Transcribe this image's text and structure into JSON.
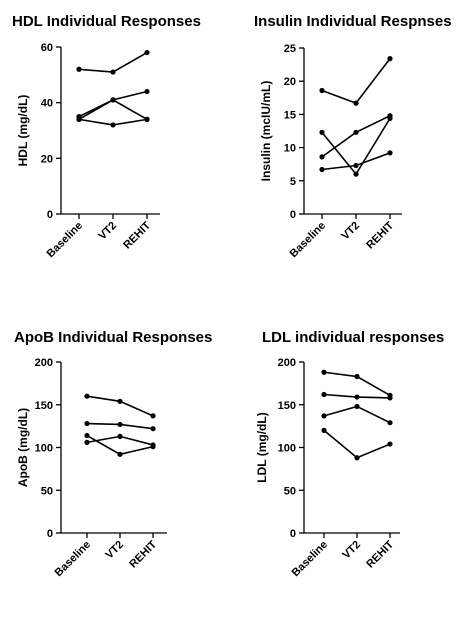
{
  "chart_data": [
    {
      "type": "line",
      "title": "HDL Individual Responses",
      "ylabel": "HDL (mg/dL)",
      "xlabel": "",
      "categories": [
        "Baseline",
        "VT2",
        "REHIT"
      ],
      "ylim": [
        0,
        60
      ],
      "yticks": [
        0,
        20,
        40,
        60
      ],
      "grid": false,
      "series": [
        {
          "values": [
            52,
            51,
            58
          ]
        },
        {
          "values": [
            34,
            41,
            44
          ]
        },
        {
          "values": [
            35,
            41,
            34
          ]
        },
        {
          "values": [
            34,
            32,
            34
          ]
        }
      ]
    },
    {
      "type": "line",
      "title": "Insulin Individual Respnses",
      "ylabel": "Insulin (mcIU/mL)",
      "xlabel": "",
      "categories": [
        "Baseline",
        "VT2",
        "REHIT"
      ],
      "ylim": [
        0,
        25
      ],
      "yticks": [
        0,
        5,
        10,
        15,
        20,
        25
      ],
      "grid": false,
      "series": [
        {
          "values": [
            18.6,
            16.7,
            23.4
          ]
        },
        {
          "values": [
            12.3,
            6.0,
            14.4
          ]
        },
        {
          "values": [
            8.6,
            12.3,
            14.8
          ]
        },
        {
          "values": [
            6.7,
            7.3,
            9.2
          ]
        }
      ]
    },
    {
      "type": "line",
      "title": "ApoB Individual Responses",
      "ylabel": "ApoB (mg/dL)",
      "xlabel": "",
      "categories": [
        "Baseline",
        "VT2",
        "REHIT"
      ],
      "ylim": [
        0,
        200
      ],
      "yticks": [
        0,
        50,
        100,
        150,
        200
      ],
      "grid": false,
      "series": [
        {
          "values": [
            160,
            154,
            137
          ]
        },
        {
          "values": [
            128,
            127,
            122
          ]
        },
        {
          "values": [
            114,
            92,
            101
          ]
        },
        {
          "values": [
            106,
            113,
            103
          ]
        }
      ]
    },
    {
      "type": "line",
      "title": "LDL individual responses",
      "ylabel": "LDL (mg/dL)",
      "xlabel": "",
      "categories": [
        "Baseline",
        "VT2",
        "REHIT"
      ],
      "ylim": [
        0,
        200
      ],
      "yticks": [
        0,
        50,
        100,
        150,
        200
      ],
      "grid": false,
      "series": [
        {
          "values": [
            188,
            183,
            161
          ]
        },
        {
          "values": [
            162,
            159,
            158
          ]
        },
        {
          "values": [
            137,
            148,
            129
          ]
        },
        {
          "values": [
            120,
            88,
            104
          ]
        }
      ]
    }
  ]
}
